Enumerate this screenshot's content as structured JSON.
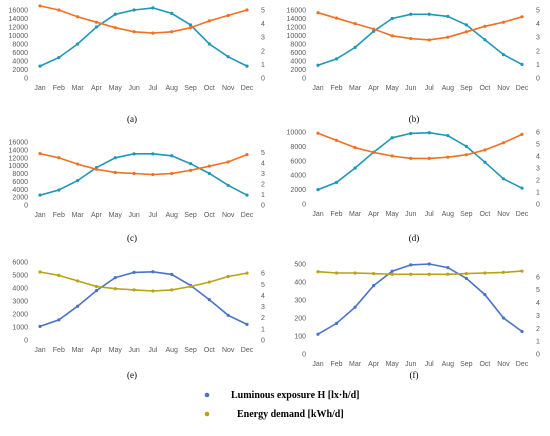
{
  "chart_data": [
    {
      "panel": "(a)",
      "type": "line",
      "categories": [
        "Jan",
        "Feb",
        "Mar",
        "Apr",
        "May",
        "Jun",
        "Jul",
        "Aug",
        "Sep",
        "Oct",
        "Nov",
        "Dec"
      ],
      "ylim_left": [
        0,
        16000
      ],
      "yticks_left": [
        "0",
        "2000",
        "4000",
        "6000",
        "8000",
        "10000",
        "12000",
        "14000",
        "16000"
      ],
      "ylim_right": [
        0,
        5
      ],
      "yticks_right": [
        "0",
        "1",
        "2",
        "3",
        "4",
        "5"
      ],
      "series": [
        {
          "axis": "left",
          "color": "#1f97b9",
          "values": [
            2800,
            4800,
            8000,
            12000,
            15000,
            16000,
            16500,
            15200,
            12500,
            8000,
            5000,
            2800
          ]
        },
        {
          "axis": "right",
          "color": "#f07125",
          "values": [
            5.3,
            5.0,
            4.5,
            4.1,
            3.7,
            3.4,
            3.3,
            3.4,
            3.7,
            4.2,
            4.6,
            5.0
          ]
        }
      ]
    },
    {
      "panel": "(b)",
      "type": "line",
      "categories": [
        "Jan",
        "Feb",
        "Mar",
        "Apr",
        "May",
        "Jun",
        "Jul",
        "Aug",
        "Sep",
        "Oct",
        "Nov",
        "Dec"
      ],
      "ylim_left": [
        0,
        16000
      ],
      "yticks_left": [
        "0",
        "2000",
        "4000",
        "6000",
        "8000",
        "10000",
        "12000",
        "14000",
        "16000"
      ],
      "ylim_right": [
        0,
        5
      ],
      "yticks_right": [
        "0",
        "1",
        "2",
        "3",
        "4",
        "5"
      ],
      "series": [
        {
          "axis": "left",
          "color": "#1f97b9",
          "values": [
            3000,
            4500,
            7200,
            11000,
            14000,
            15000,
            15000,
            14500,
            12500,
            9000,
            5500,
            3200
          ]
        },
        {
          "axis": "right",
          "color": "#f07125",
          "values": [
            4.8,
            4.4,
            4.0,
            3.6,
            3.1,
            2.9,
            2.8,
            3.0,
            3.4,
            3.8,
            4.1,
            4.5
          ]
        }
      ]
    },
    {
      "panel": "(c)",
      "type": "line",
      "categories": [
        "Jan",
        "Feb",
        "Mar",
        "Apr",
        "May",
        "Jun",
        "Jul",
        "Aug",
        "Sep",
        "Oct",
        "Nov",
        "Dec"
      ],
      "ylim_left": [
        0,
        16000
      ],
      "yticks_left": [
        "0",
        "2000",
        "4000",
        "6000",
        "8000",
        "10000",
        "12000",
        "14000",
        "16000"
      ],
      "ylim_right": [
        0,
        6
      ],
      "yticks_right": [
        "0",
        "1",
        "2",
        "3",
        "4",
        "5"
      ],
      "series": [
        {
          "axis": "left",
          "color": "#1f97b9",
          "values": [
            2500,
            3800,
            6200,
            9500,
            12000,
            13000,
            13000,
            12500,
            10500,
            8000,
            5000,
            2500
          ]
        },
        {
          "axis": "right",
          "color": "#f07125",
          "values": [
            4.9,
            4.5,
            3.9,
            3.4,
            3.1,
            3.0,
            2.9,
            3.0,
            3.3,
            3.7,
            4.1,
            4.8
          ]
        }
      ]
    },
    {
      "panel": "(d)",
      "type": "line",
      "categories": [
        "Jan",
        "Feb",
        "Mar",
        "Apr",
        "May",
        "Jun",
        "Jul",
        "Aug",
        "Sep",
        "Oct",
        "Nov",
        "Dec"
      ],
      "ylim_left": [
        0,
        10000
      ],
      "yticks_left": [
        "0",
        "2000",
        "4000",
        "6000",
        "8000",
        "10000"
      ],
      "ylim_right": [
        0,
        6
      ],
      "yticks_right": [
        "0",
        "1",
        "2",
        "3",
        "4",
        "5",
        "6"
      ],
      "series": [
        {
          "axis": "left",
          "color": "#1f97b9",
          "values": [
            2000,
            3000,
            5000,
            7200,
            9200,
            9800,
            9900,
            9500,
            8000,
            5800,
            3500,
            2200
          ]
        },
        {
          "axis": "right",
          "color": "#f07125",
          "values": [
            5.9,
            5.3,
            4.7,
            4.3,
            4.0,
            3.8,
            3.8,
            3.9,
            4.1,
            4.5,
            5.1,
            5.8
          ]
        }
      ]
    },
    {
      "panel": "(e)",
      "type": "line",
      "categories": [
        "Jan",
        "Feb",
        "Mar",
        "Apr",
        "May",
        "Jun",
        "Jul",
        "Aug",
        "Sep",
        "Oct",
        "Nov",
        "Dec"
      ],
      "ylim_left": [
        0,
        6000
      ],
      "yticks_left": [
        "0",
        "1000",
        "2000",
        "3000",
        "4000",
        "5000",
        "6000"
      ],
      "ylim_right": [
        0,
        7
      ],
      "yticks_right": [
        "0",
        "1",
        "2",
        "3",
        "4",
        "5",
        "6"
      ],
      "series": [
        {
          "axis": "left",
          "color": "#4a73c7",
          "values": [
            1050,
            1550,
            2600,
            3800,
            4800,
            5200,
            5250,
            5050,
            4200,
            3100,
            1900,
            1200
          ]
        },
        {
          "axis": "right",
          "color": "#b9a214",
          "values": [
            6.1,
            5.8,
            5.3,
            4.8,
            4.6,
            4.5,
            4.4,
            4.5,
            4.8,
            5.2,
            5.7,
            6.0
          ]
        }
      ]
    },
    {
      "panel": "(f)",
      "type": "line",
      "categories": [
        "Jan",
        "Feb",
        "Mar",
        "Apr",
        "May",
        "Jun",
        "Jul",
        "Aug",
        "Sep",
        "Oct",
        "Nov",
        "Dec"
      ],
      "ylim_left": [
        0,
        500
      ],
      "yticks_left": [
        "0",
        "100",
        "200",
        "300",
        "400",
        "500"
      ],
      "ylim_right": [
        0,
        7
      ],
      "yticks_right": [
        "0",
        "1",
        "2",
        "3",
        "4",
        "5",
        "6"
      ],
      "series": [
        {
          "axis": "left",
          "color": "#4a73c7",
          "values": [
            110,
            170,
            260,
            380,
            460,
            495,
            500,
            480,
            420,
            330,
            200,
            125
          ]
        },
        {
          "axis": "right",
          "color": "#b9a214",
          "values": [
            6.4,
            6.3,
            6.3,
            6.25,
            6.2,
            6.2,
            6.2,
            6.2,
            6.25,
            6.3,
            6.35,
            6.45
          ]
        }
      ]
    }
  ],
  "legend": [
    {
      "label": "Luminous exposure H [lx·h/d]",
      "color": "#4a73c7"
    },
    {
      "label": "Energy demand [kWh/d]",
      "color": "#b9a214"
    }
  ]
}
